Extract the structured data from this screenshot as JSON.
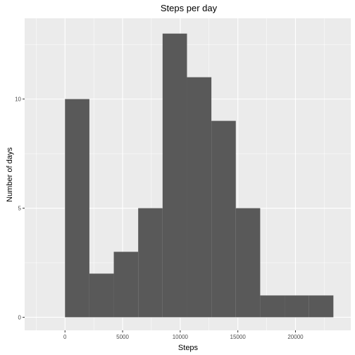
{
  "chart_data": {
    "type": "bar",
    "subtype": "histogram",
    "title": "Steps per day",
    "xlabel": "Steps",
    "ylabel": "Number of days",
    "bins": [
      {
        "start": 0,
        "end": 2117.5,
        "count": 10
      },
      {
        "start": 2117.5,
        "end": 4235,
        "count": 2
      },
      {
        "start": 4235,
        "end": 6352.5,
        "count": 3
      },
      {
        "start": 6352.5,
        "end": 8470,
        "count": 5
      },
      {
        "start": 8470,
        "end": 10587.5,
        "count": 13
      },
      {
        "start": 10587.5,
        "end": 12705,
        "count": 11
      },
      {
        "start": 12705,
        "end": 14822.5,
        "count": 9
      },
      {
        "start": 14822.5,
        "end": 16940,
        "count": 5
      },
      {
        "start": 16940,
        "end": 19057.5,
        "count": 1
      },
      {
        "start": 19057.5,
        "end": 21175,
        "count": 1
      },
      {
        "start": 21175,
        "end": 23292.5,
        "count": 1
      }
    ],
    "xlim": [
      -3500,
      24800
    ],
    "ylim": [
      -0.6,
      13.7
    ],
    "x_ticks": [
      0,
      5000,
      10000,
      15000,
      20000
    ],
    "x_tick_labels": [
      "0",
      "5000",
      "10000",
      "15000",
      "20000"
    ],
    "y_ticks": [
      0,
      5,
      10
    ],
    "y_tick_labels": [
      "0",
      "5",
      "10"
    ],
    "grid": true,
    "colors": {
      "panel_background": "#ebebeb",
      "grid_major": "#ffffff",
      "bar_fill": "#595959",
      "tick_text": "#4d4d4d"
    }
  }
}
